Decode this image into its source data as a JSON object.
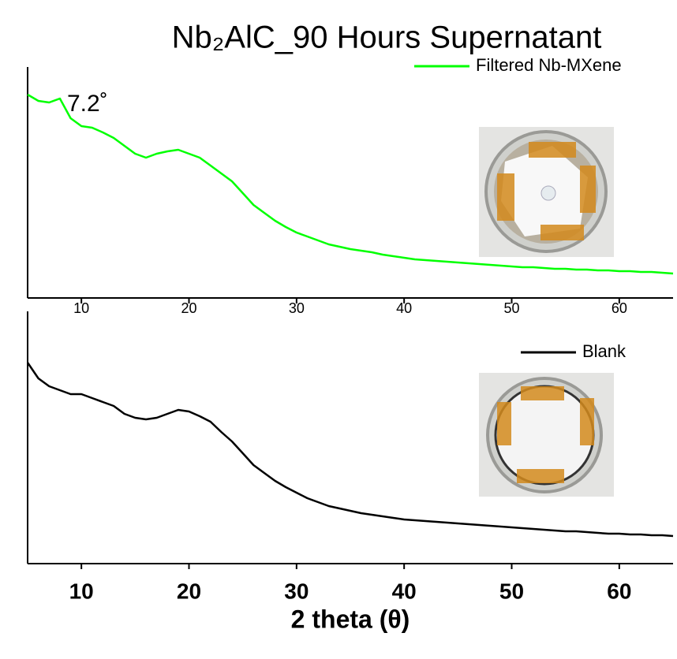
{
  "chart_data": [
    {
      "type": "line",
      "title": "Nb₂AlC_90 Hours Supernatant",
      "x": [
        5,
        6,
        7,
        8,
        9,
        10,
        11,
        12,
        13,
        14,
        15,
        16,
        17,
        18,
        19,
        20,
        21,
        22,
        23,
        24,
        25,
        26,
        27,
        28,
        29,
        30,
        31,
        32,
        33,
        34,
        35,
        36,
        37,
        38,
        39,
        40,
        41,
        42,
        43,
        44,
        45,
        46,
        47,
        48,
        49,
        50,
        51,
        52,
        53,
        54,
        55,
        56,
        57,
        58,
        59,
        60,
        61,
        62,
        63,
        64,
        65
      ],
      "series": [
        {
          "name": "Filtered Nb-MXene",
          "color": "#00ff00",
          "values": [
            258,
            250,
            248,
            253,
            228,
            218,
            216,
            210,
            203,
            193,
            183,
            178,
            183,
            186,
            188,
            183,
            178,
            168,
            158,
            148,
            133,
            118,
            108,
            98,
            90,
            83,
            78,
            73,
            68,
            65,
            62,
            60,
            58,
            55,
            53,
            51,
            49,
            48,
            47,
            46,
            45,
            44,
            43,
            42,
            41,
            40,
            39,
            39,
            38,
            37,
            37,
            36,
            36,
            35,
            35,
            34,
            34,
            33,
            33,
            32,
            31
          ]
        }
      ],
      "xlim": [
        5,
        65
      ],
      "ylim": [
        0,
        293
      ],
      "xticks": [
        10,
        20,
        30,
        40,
        50,
        60
      ],
      "legend": "upper right",
      "annotations": [
        {
          "text": "7.2˚"
        }
      ]
    },
    {
      "type": "line",
      "x": [
        5,
        6,
        7,
        8,
        9,
        10,
        11,
        12,
        13,
        14,
        15,
        16,
        17,
        18,
        19,
        20,
        21,
        22,
        23,
        24,
        25,
        26,
        27,
        28,
        29,
        30,
        31,
        32,
        33,
        34,
        35,
        36,
        37,
        38,
        39,
        40,
        41,
        42,
        43,
        44,
        45,
        46,
        47,
        48,
        49,
        50,
        51,
        52,
        53,
        54,
        55,
        56,
        57,
        58,
        59,
        60,
        61,
        62,
        63,
        64,
        65
      ],
      "series": [
        {
          "name": "Blank",
          "color": "#000000",
          "values": [
            255,
            235,
            225,
            220,
            215,
            215,
            210,
            205,
            200,
            190,
            185,
            183,
            185,
            190,
            195,
            193,
            187,
            180,
            167,
            155,
            140,
            125,
            115,
            105,
            97,
            90,
            83,
            78,
            73,
            70,
            67,
            64,
            62,
            60,
            58,
            56,
            55,
            54,
            53,
            52,
            51,
            50,
            49,
            48,
            47,
            46,
            45,
            44,
            43,
            42,
            41,
            41,
            40,
            39,
            38,
            38,
            37,
            37,
            36,
            36,
            35
          ]
        }
      ],
      "xlim": [
        5,
        65
      ],
      "ylim": [
        0,
        320
      ],
      "xticks": [
        10,
        20,
        30,
        40,
        50,
        60
      ],
      "xlabel": "2 theta (θ)",
      "legend": "upper right"
    }
  ]
}
